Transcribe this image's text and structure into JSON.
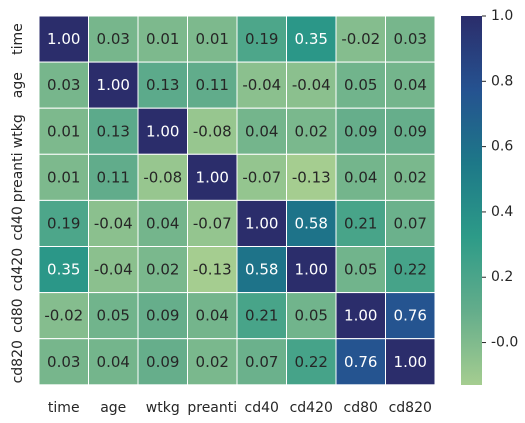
{
  "chart_data": {
    "type": "heatmap",
    "title": "",
    "xlabel": "",
    "ylabel": "",
    "row_labels": [
      "time",
      "age",
      "wtkg",
      "preanti",
      "cd40",
      "cd420",
      "cd80",
      "cd820"
    ],
    "col_labels": [
      "time",
      "age",
      "wtkg",
      "preanti",
      "cd40",
      "cd420",
      "cd80",
      "cd820"
    ],
    "values": [
      [
        1.0,
        0.03,
        0.01,
        0.01,
        0.19,
        0.35,
        -0.02,
        0.03
      ],
      [
        0.03,
        1.0,
        0.13,
        0.11,
        -0.04,
        -0.04,
        0.05,
        0.04
      ],
      [
        0.01,
        0.13,
        1.0,
        -0.08,
        0.04,
        0.02,
        0.09,
        0.09
      ],
      [
        0.01,
        0.11,
        -0.08,
        1.0,
        -0.07,
        -0.13,
        0.04,
        0.02
      ],
      [
        0.19,
        -0.04,
        0.04,
        -0.07,
        1.0,
        0.58,
        0.21,
        0.07
      ],
      [
        0.35,
        -0.04,
        0.02,
        -0.13,
        0.58,
        1.0,
        0.05,
        0.22
      ],
      [
        -0.02,
        0.05,
        0.09,
        0.04,
        0.21,
        0.05,
        1.0,
        0.76
      ],
      [
        0.03,
        0.04,
        0.09,
        0.02,
        0.07,
        0.22,
        0.76,
        1.0
      ]
    ],
    "value_format": "2 decimals",
    "colorbar": {
      "range": [
        -0.13,
        1.0
      ],
      "ticks": [
        -0.0,
        0.2,
        0.4,
        0.6,
        0.8,
        1.0
      ],
      "tick_labels": [
        "-0.0",
        "0.2",
        "0.4",
        "0.6",
        "0.8",
        "1.0"
      ],
      "placement": "right"
    },
    "colormap": {
      "name": "crest",
      "stops": [
        "#a5cd90",
        "#64ad8b",
        "#2d9b88",
        "#1d7888",
        "#255290",
        "#2b2d6b"
      ]
    },
    "annotation_text_colors": {
      "light_cells": "#262626",
      "dark_cells": "#ffffff"
    }
  }
}
